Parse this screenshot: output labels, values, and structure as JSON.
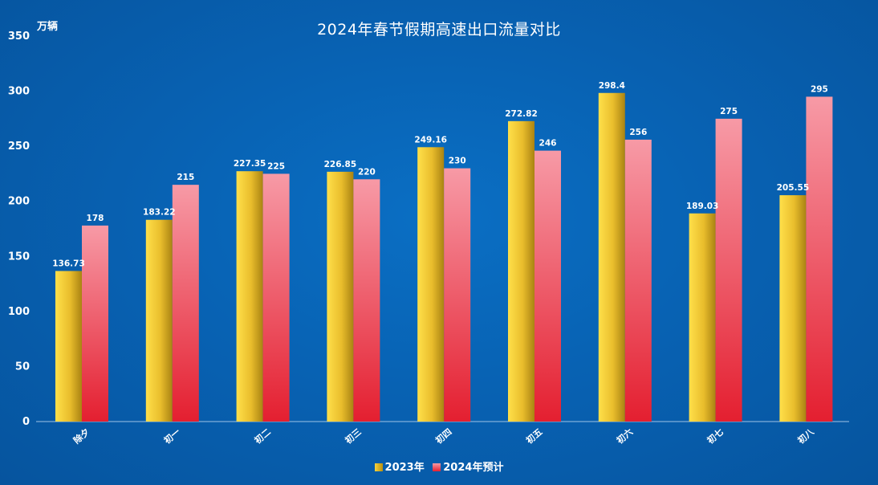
{
  "chart_data": {
    "type": "bar",
    "title": "2024年春节假期高速出口流量对比",
    "ylabel": "万辆",
    "xlabel": "",
    "ylim": [
      0,
      350
    ],
    "yticks": [
      0,
      50,
      100,
      150,
      200,
      250,
      300,
      350
    ],
    "categories": [
      "除夕",
      "初一",
      "初二",
      "初三",
      "初四",
      "初五",
      "初六",
      "初七",
      "初八"
    ],
    "series": [
      {
        "name": "2023年",
        "values": [
          136.73,
          183.22,
          227.35,
          226.85,
          249.16,
          272.82,
          298.4,
          189.03,
          205.55
        ],
        "labels": [
          "136.73",
          "183.22",
          "227.35",
          "226.85",
          "249.16",
          "272.82",
          "298.4",
          "189.03",
          "205.55"
        ],
        "color": "#f2c62f"
      },
      {
        "name": "2024年预计",
        "values": [
          178,
          215,
          225,
          220,
          230,
          246,
          256,
          275,
          295
        ],
        "labels": [
          "178",
          "215",
          "225",
          "220",
          "230",
          "246",
          "256",
          "275",
          "295"
        ],
        "color": "#ea3040"
      }
    ],
    "grid": false,
    "legend_position": "bottom-center"
  },
  "colors": {
    "background": "#0862b3",
    "axis": "#9fc3e6",
    "text": "#ffffff"
  }
}
